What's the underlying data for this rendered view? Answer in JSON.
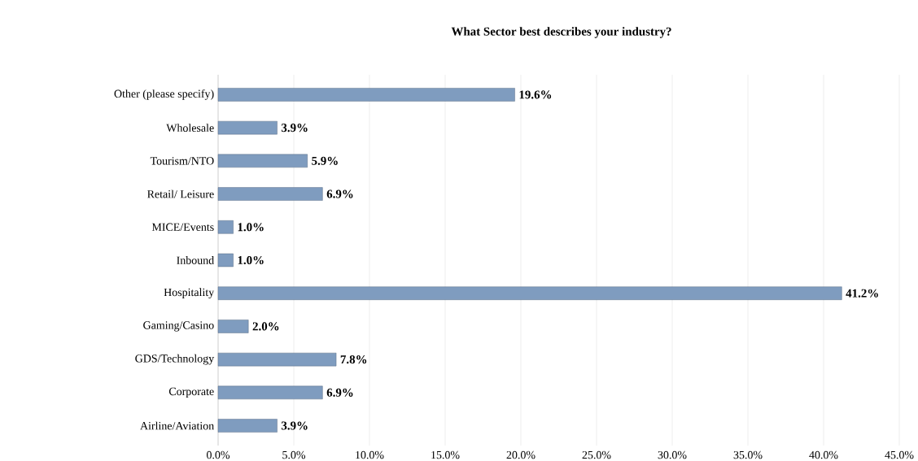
{
  "chart_data": {
    "type": "bar",
    "orientation": "horizontal",
    "title": "What Sector best describes your industry?",
    "categories": [
      "Other (please specify)",
      "Wholesale",
      "Tourism/NTO",
      "Retail/ Leisure",
      "MICE/Events",
      "Inbound",
      "Hospitality",
      "Gaming/Casino",
      "GDS/Technology",
      "Corporate",
      "Airline/Aviation"
    ],
    "values": [
      19.6,
      3.9,
      5.9,
      6.9,
      1.0,
      1.0,
      41.2,
      2.0,
      7.8,
      6.9,
      3.9
    ],
    "value_labels": [
      "19.6%",
      "3.9%",
      "5.9%",
      "6.9%",
      "1.0%",
      "1.0%",
      "41.2%",
      "2.0%",
      "7.8%",
      "6.9%",
      "3.9%"
    ],
    "color": "#7f9cbf",
    "xlim": [
      0,
      45
    ],
    "xticks": [
      {
        "value": 0,
        "label": "0.0%"
      },
      {
        "value": 5,
        "label": "5.0%"
      },
      {
        "value": 10,
        "label": "10.0%"
      },
      {
        "value": 15,
        "label": "15.0%"
      },
      {
        "value": 20,
        "label": "20.0%"
      },
      {
        "value": 25,
        "label": "25.0%"
      },
      {
        "value": 30,
        "label": "30.0%"
      },
      {
        "value": 35,
        "label": "35.0%"
      },
      {
        "value": 40,
        "label": "40.0%"
      },
      {
        "value": 45,
        "label": "45.0%"
      }
    ],
    "grid": "x"
  }
}
